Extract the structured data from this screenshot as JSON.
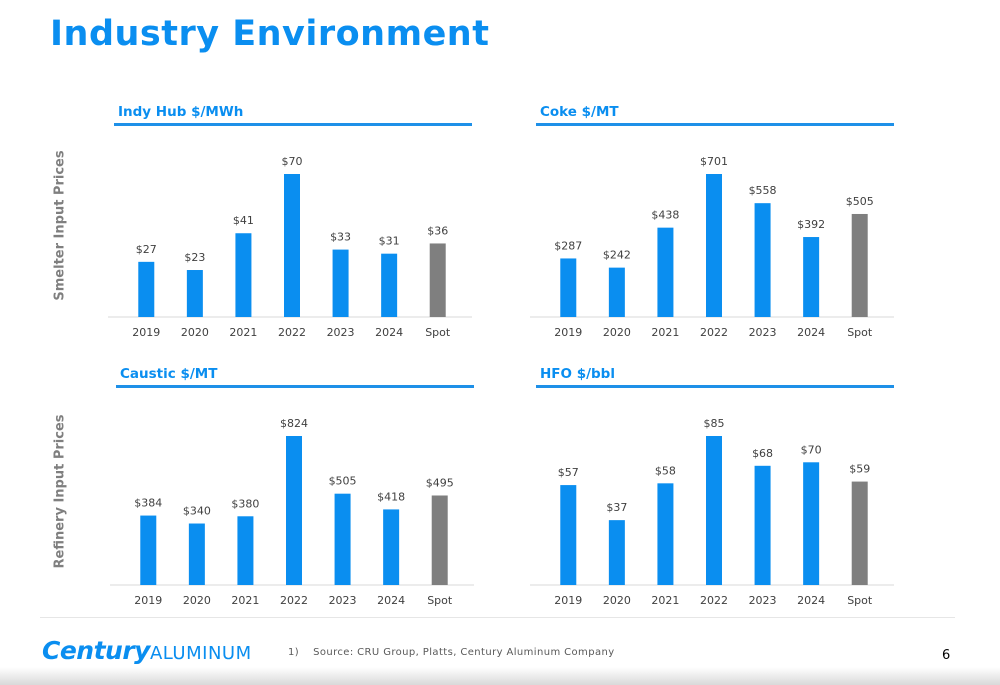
{
  "page": {
    "title": "Industry Environment",
    "side_labels": [
      "Smelter Input Prices",
      "Refinery Input Prices"
    ],
    "footer": {
      "logo_strong": "Century",
      "logo_light": "ALUMINUM",
      "source_number": "1)",
      "source_text": "Source: CRU Group, Platts, Century Aluminum Company",
      "page_number": "6"
    }
  },
  "colors": {
    "accent": "#0a8ef0",
    "bar": "#0a8ef0",
    "spot_bar": "#7f7f7f",
    "title": "#0a8ef0"
  },
  "chart_data": [
    {
      "type": "bar",
      "title": "Indy Hub $/MWh",
      "categories": [
        "2019",
        "2020",
        "2021",
        "2022",
        "2023",
        "2024",
        "Spot"
      ],
      "values": [
        27,
        23,
        41,
        70,
        33,
        31,
        36
      ],
      "labels": [
        "$27",
        "$23",
        "$41",
        "$70",
        "$33",
        "$31",
        "$36"
      ],
      "highlight": [
        "blue",
        "blue",
        "blue",
        "blue",
        "blue",
        "blue",
        "gray"
      ],
      "ylim": [
        0,
        70
      ],
      "grid": false
    },
    {
      "type": "bar",
      "title": "Coke $/MT",
      "categories": [
        "2019",
        "2020",
        "2021",
        "2022",
        "2023",
        "2024",
        "Spot"
      ],
      "values": [
        287,
        242,
        438,
        701,
        558,
        392,
        505
      ],
      "labels": [
        "$287",
        "$242",
        "$438",
        "$701",
        "$558",
        "$392",
        "$505"
      ],
      "highlight": [
        "blue",
        "blue",
        "blue",
        "blue",
        "blue",
        "blue",
        "gray"
      ],
      "ylim": [
        0,
        701
      ],
      "grid": false
    },
    {
      "type": "bar",
      "title": "Caustic $/MT",
      "categories": [
        "2019",
        "2020",
        "2021",
        "2022",
        "2023",
        "2024",
        "Spot"
      ],
      "values": [
        384,
        340,
        380,
        824,
        505,
        418,
        495
      ],
      "labels": [
        "$384",
        "$340",
        "$380",
        "$824",
        "$505",
        "$418",
        "$495"
      ],
      "highlight": [
        "blue",
        "blue",
        "blue",
        "blue",
        "blue",
        "blue",
        "gray"
      ],
      "ylim": [
        0,
        824
      ],
      "grid": false
    },
    {
      "type": "bar",
      "title": "HFO $/bbl",
      "categories": [
        "2019",
        "2020",
        "2021",
        "2022",
        "2023",
        "2024",
        "Spot"
      ],
      "values": [
        57,
        37,
        58,
        85,
        68,
        70,
        59
      ],
      "labels": [
        "$57",
        "$37",
        "$58",
        "$85",
        "$68",
        "$70",
        "$59"
      ],
      "highlight": [
        "blue",
        "blue",
        "blue",
        "blue",
        "blue",
        "blue",
        "gray"
      ],
      "ylim": [
        0,
        85
      ],
      "grid": false
    }
  ]
}
